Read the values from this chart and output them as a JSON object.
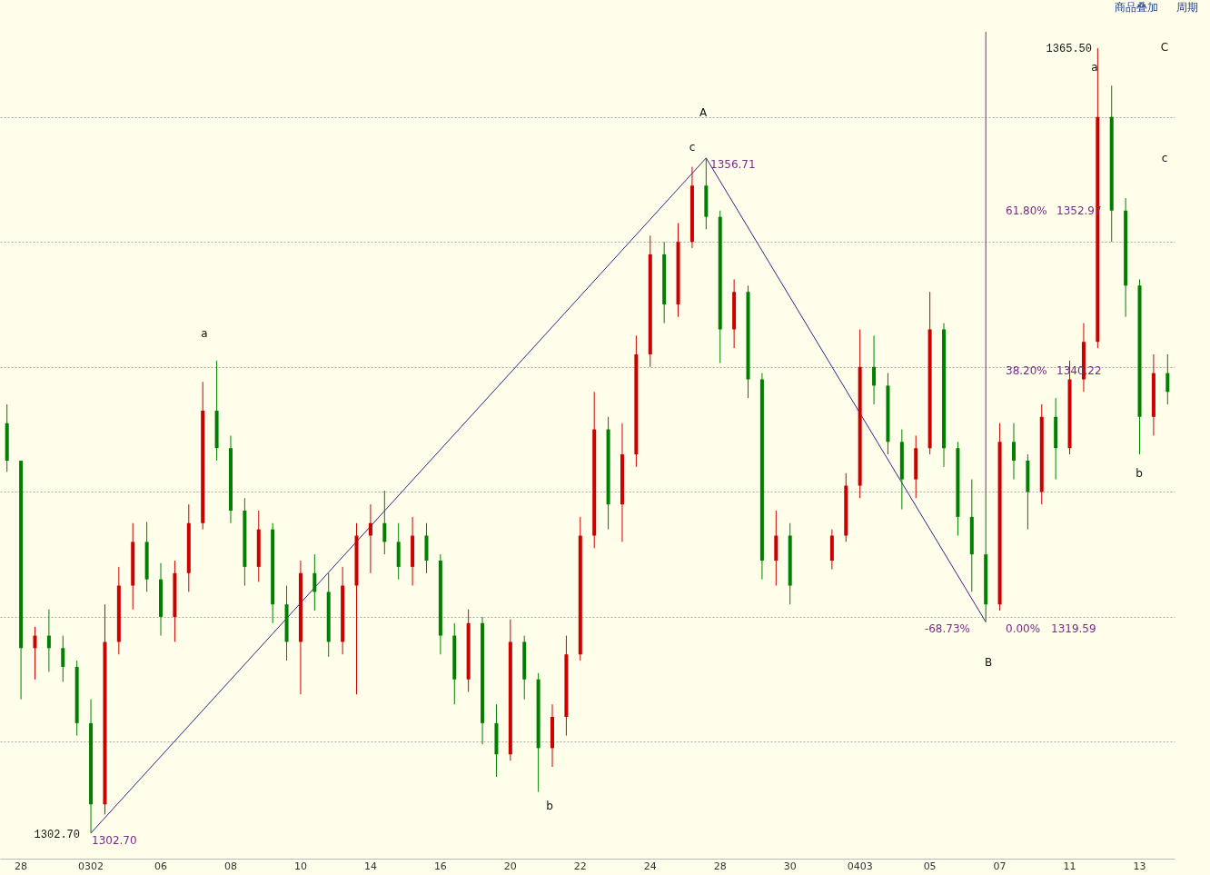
{
  "chart_data": {
    "type": "candlestick",
    "categories": [
      null,
      "28",
      null,
      null,
      null,
      null,
      "0302",
      null,
      null,
      null,
      null,
      "06",
      null,
      null,
      null,
      null,
      "08",
      null,
      null,
      null,
      null,
      "10",
      null,
      null,
      null,
      null,
      "14",
      null,
      null,
      null,
      null,
      "16",
      null,
      null,
      null,
      null,
      "20",
      null,
      null,
      null,
      null,
      "22",
      null,
      null,
      null,
      null,
      "24",
      null,
      null,
      null,
      null,
      "28",
      null,
      null,
      null,
      null,
      "30",
      null,
      null,
      null,
      null,
      "0403",
      null,
      null,
      null,
      null,
      "05",
      null,
      null,
      null,
      null,
      "07",
      null,
      null,
      null,
      null,
      "11",
      null,
      null,
      null,
      null,
      "13",
      null,
      null
    ],
    "ohlc": [
      [
        1335.5,
        1337.0,
        1331.6,
        1332.5
      ],
      [
        1332.5,
        1332.5,
        1313.4,
        1317.5
      ],
      [
        1317.5,
        1319.2,
        1315.0,
        1318.5
      ],
      [
        1318.5,
        1320.6,
        1315.6,
        1317.5
      ],
      [
        1317.5,
        1318.5,
        1314.8,
        1316.0
      ],
      [
        1316.0,
        1316.5,
        1310.5,
        1311.5
      ],
      [
        1311.5,
        1313.4,
        1302.7,
        1305.0
      ],
      [
        1305.0,
        1321.0,
        1304.2,
        1318.0
      ],
      [
        1318.0,
        1324.0,
        1317.0,
        1322.5
      ],
      [
        1322.5,
        1327.5,
        1320.6,
        1326.0
      ],
      [
        1326.0,
        1327.6,
        1322.0,
        1323.0
      ],
      [
        1323.0,
        1324.3,
        1318.5,
        1320.0
      ],
      [
        1320.0,
        1324.5,
        1318.0,
        1323.5
      ],
      [
        1323.5,
        1329.0,
        1322.0,
        1327.5
      ],
      [
        1327.5,
        1338.8,
        1327.0,
        1336.5
      ],
      [
        1336.5,
        1340.5,
        1332.5,
        1333.5
      ],
      [
        1333.5,
        1334.5,
        1327.5,
        1328.5
      ],
      [
        1328.5,
        1329.5,
        1322.5,
        1324.0
      ],
      [
        1324.0,
        1328.5,
        1322.8,
        1327.0
      ],
      [
        1327.0,
        1327.5,
        1319.5,
        1321.0
      ],
      [
        1321.0,
        1322.5,
        1316.5,
        1318.0
      ],
      [
        1318.0,
        1324.5,
        1313.8,
        1323.5
      ],
      [
        1323.5,
        1325.0,
        1320.5,
        1322.0
      ],
      [
        1322.0,
        1323.5,
        1316.8,
        1318.0
      ],
      [
        1318.0,
        1324.0,
        1317.0,
        1322.5
      ],
      [
        1322.5,
        1327.5,
        1313.8,
        1326.5
      ],
      [
        1326.5,
        1329.0,
        1323.5,
        1327.5
      ],
      [
        1327.5,
        1330.1,
        1325.0,
        1326.0
      ],
      [
        1326.0,
        1327.5,
        1323.0,
        1324.0
      ],
      [
        1324.0,
        1328.0,
        1322.5,
        1326.5
      ],
      [
        1326.5,
        1327.5,
        1323.5,
        1324.5
      ],
      [
        1324.5,
        1325.0,
        1317.0,
        1318.5
      ],
      [
        1318.5,
        1319.5,
        1313.0,
        1315.0
      ],
      [
        1315.0,
        1320.6,
        1314.0,
        1319.5
      ],
      [
        1319.5,
        1320.0,
        1309.8,
        1311.5
      ],
      [
        1311.5,
        1313.0,
        1307.2,
        1309.0
      ],
      [
        1309.0,
        1319.8,
        1308.5,
        1318.0
      ],
      [
        1318.0,
        1318.5,
        1313.4,
        1315.0
      ],
      [
        1315.0,
        1315.5,
        1306.0,
        1309.5
      ],
      [
        1309.5,
        1313.0,
        1308.0,
        1312.0
      ],
      [
        1312.0,
        1318.5,
        1310.5,
        1317.0
      ],
      [
        1317.0,
        1328.0,
        1316.5,
        1326.5
      ],
      [
        1326.5,
        1338.0,
        1325.5,
        1335.0
      ],
      [
        1335.0,
        1336.0,
        1327.0,
        1329.0
      ],
      [
        1329.0,
        1335.5,
        1326.0,
        1333.0
      ],
      [
        1333.0,
        1342.5,
        1332.0,
        1341.0
      ],
      [
        1341.0,
        1350.5,
        1340.0,
        1349.0
      ],
      [
        1349.0,
        1350.0,
        1343.5,
        1345.0
      ],
      [
        1345.0,
        1351.5,
        1344.0,
        1350.0
      ],
      [
        1350.0,
        1356.0,
        1349.5,
        1354.5
      ],
      [
        1354.5,
        1356.71,
        1351.0,
        1352.0
      ],
      [
        1352.0,
        1352.5,
        1340.3,
        1343.0
      ],
      [
        1343.0,
        1347.0,
        1341.5,
        1346.0
      ],
      [
        1346.0,
        1346.5,
        1337.5,
        1339.0
      ],
      [
        1339.0,
        1339.5,
        1323.0,
        1324.5
      ],
      [
        1324.5,
        1328.5,
        1322.5,
        1326.5
      ],
      [
        1326.5,
        1327.5,
        1321.0,
        1322.5
      ],
      null,
      null,
      [
        1324.5,
        1327.0,
        1323.8,
        1326.5
      ],
      [
        1326.5,
        1331.5,
        1326.0,
        1330.5
      ],
      [
        1330.5,
        1343.0,
        1329.5,
        1340.0
      ],
      [
        1340.0,
        1342.5,
        1337.0,
        1338.5
      ],
      [
        1338.5,
        1339.5,
        1333.0,
        1334.0
      ],
      [
        1334.0,
        1335.0,
        1328.6,
        1331.0
      ],
      [
        1331.0,
        1334.5,
        1329.5,
        1333.5
      ],
      [
        1333.5,
        1346.0,
        1333.0,
        1343.0
      ],
      [
        1343.0,
        1343.5,
        1332.0,
        1333.5
      ],
      [
        1333.5,
        1334.0,
        1326.5,
        1328.0
      ],
      [
        1328.0,
        1331.0,
        1322.0,
        1325.0
      ],
      [
        1325.0,
        1330.0,
        1319.59,
        1321.0
      ],
      [
        1321.0,
        1335.5,
        1320.5,
        1334.0
      ],
      [
        1334.0,
        1335.5,
        1331.0,
        1332.5
      ],
      [
        1332.5,
        1333.0,
        1327.0,
        1330.0
      ],
      [
        1330.0,
        1337.0,
        1329.0,
        1336.0
      ],
      [
        1336.0,
        1337.5,
        1331.0,
        1333.5
      ],
      [
        1333.5,
        1340.5,
        1333.0,
        1339.0
      ],
      [
        1339.0,
        1343.5,
        1338.0,
        1342.0
      ],
      [
        1342.0,
        1365.5,
        1341.5,
        1360.0
      ],
      [
        1360.0,
        1362.5,
        1350.0,
        1352.5
      ],
      [
        1352.5,
        1353.5,
        1344.0,
        1346.5
      ],
      [
        1346.5,
        1347.0,
        1333.0,
        1336.0
      ],
      [
        1336.0,
        1341.0,
        1334.5,
        1339.5
      ],
      [
        1339.5,
        1341.0,
        1337.0,
        1338.0
      ]
    ],
    "colors": [
      "#008000",
      "#008000",
      "#cc0000",
      "#008000",
      "#008000",
      "#008000",
      "#008000",
      "#cc0000",
      "#cc0000",
      "#cc0000",
      "#008000",
      "#008000",
      "#cc0000",
      "#cc0000",
      "#cc0000",
      "#008000",
      "#008000",
      "#008000",
      "#cc0000",
      "#008000",
      "#008000",
      "#cc0000",
      "#008000",
      "#008000",
      "#cc0000",
      "#cc0000",
      "#cc0000",
      "#008000",
      "#008000",
      "#cc0000",
      "#008000",
      "#008000",
      "#008000",
      "#cc0000",
      "#008000",
      "#008000",
      "#cc0000",
      "#008000",
      "#008000",
      "#cc0000",
      "#cc0000",
      "#cc0000",
      "#cc0000",
      "#008000",
      "#cc0000",
      "#cc0000",
      "#cc0000",
      "#008000",
      "#cc0000",
      "#cc0000",
      "#008000",
      "#008000",
      "#cc0000",
      "#008000",
      "#008000",
      "#cc0000",
      "#008000",
      null,
      null,
      "#cc0000",
      "#cc0000",
      "#cc0000",
      "#008000",
      "#008000",
      "#008000",
      "#cc0000",
      "#cc0000",
      "#008000",
      "#008000",
      "#008000",
      "#008000",
      "#cc0000",
      "#008000",
      "#008000",
      "#cc0000",
      "#008000",
      "#cc0000",
      "#cc0000",
      "#cc0000",
      "#008000",
      "#008000",
      "#008000",
      "#cc0000",
      "#008000"
    ],
    "series": [
      {
        "type": "line",
        "values": [
          null,
          null,
          null,
          null,
          null,
          null,
          1302.7,
          null,
          null,
          null,
          null,
          null,
          null,
          null,
          null,
          null,
          null,
          null,
          null,
          null,
          null,
          null,
          null,
          null,
          null,
          null,
          null,
          null,
          null,
          null,
          null,
          null,
          null,
          null,
          null,
          null,
          null,
          null,
          null,
          null,
          null,
          null,
          null,
          null,
          null,
          null,
          null,
          null,
          null,
          null,
          1356.71,
          null,
          null,
          null,
          null,
          null,
          null,
          null,
          null,
          null,
          null,
          null,
          null,
          null,
          null,
          null,
          null,
          null,
          null,
          null,
          1319.59,
          null,
          null,
          null,
          null,
          null,
          null,
          null,
          null,
          null,
          null,
          null,
          null,
          null
        ],
        "color": "#3c1e8c"
      }
    ],
    "tick_labels": "x",
    "grid": "y",
    "annotations": [
      "A",
      "c",
      "a",
      "b",
      "B",
      "a",
      "b",
      "C",
      "c",
      "1302.70",
      "1365.50",
      "1302.70",
      "1356.71",
      "61.80%",
      "1352.97",
      "38.20%",
      "1340.22",
      "0.00%",
      "1319.59",
      "-68.73%",
      "商品叠加",
      "周期"
    ]
  }
}
